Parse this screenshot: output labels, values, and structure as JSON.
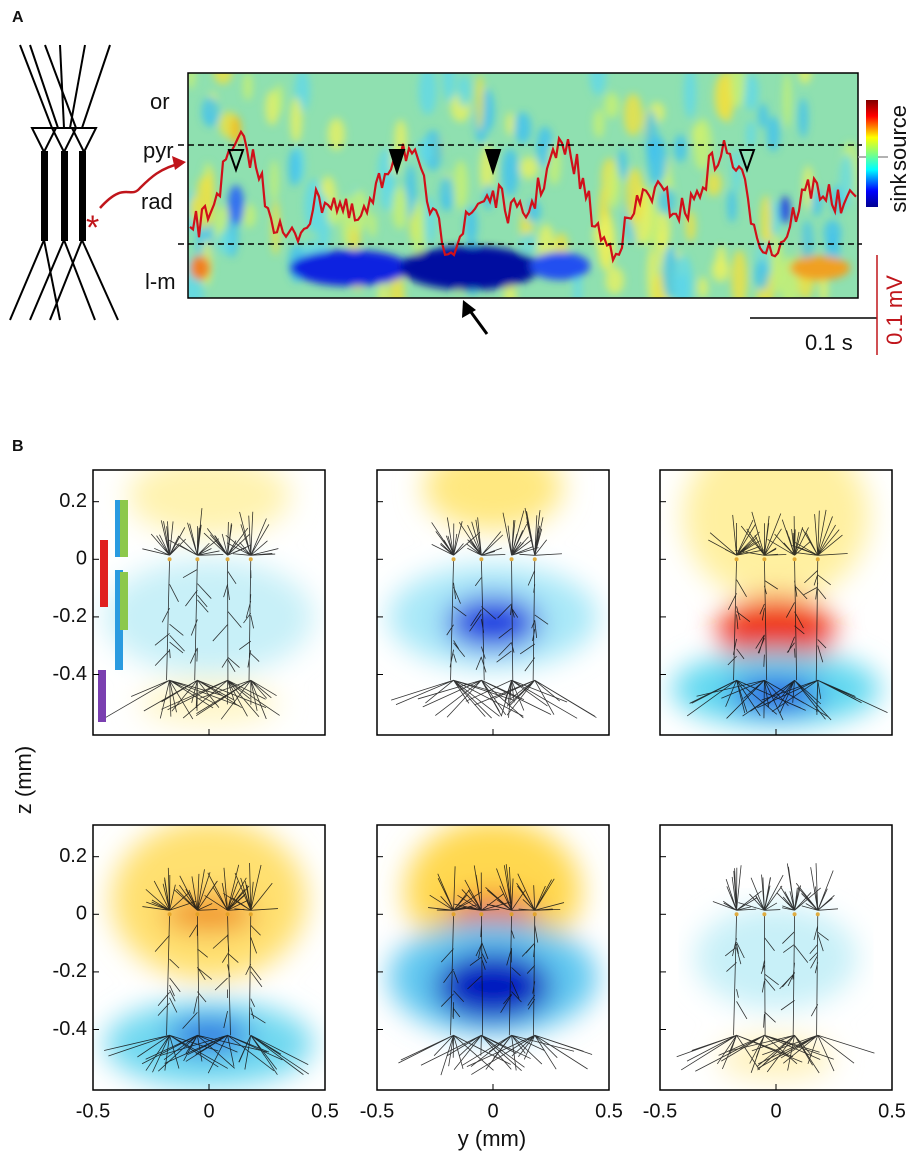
{
  "panel_labels": [
    "A",
    "B"
  ],
  "panel_a": {
    "layers": [
      "or",
      "pyr",
      "rad",
      "l-m"
    ],
    "colorbar": {
      "top": "source",
      "bottom": "sink"
    },
    "scale": {
      "time": "0.1 s",
      "voltage": "0.1 mV"
    }
  },
  "panel_b": {
    "ylabel": "z (mm)",
    "xlabel": "y (mm)",
    "ylim": [
      -0.61,
      0.31
    ],
    "xlim": [
      -0.5,
      0.5
    ],
    "yticks": [
      0.2,
      0,
      -0.2,
      -0.4
    ],
    "xticks": [
      -0.5,
      0,
      0.5
    ]
  }
}
